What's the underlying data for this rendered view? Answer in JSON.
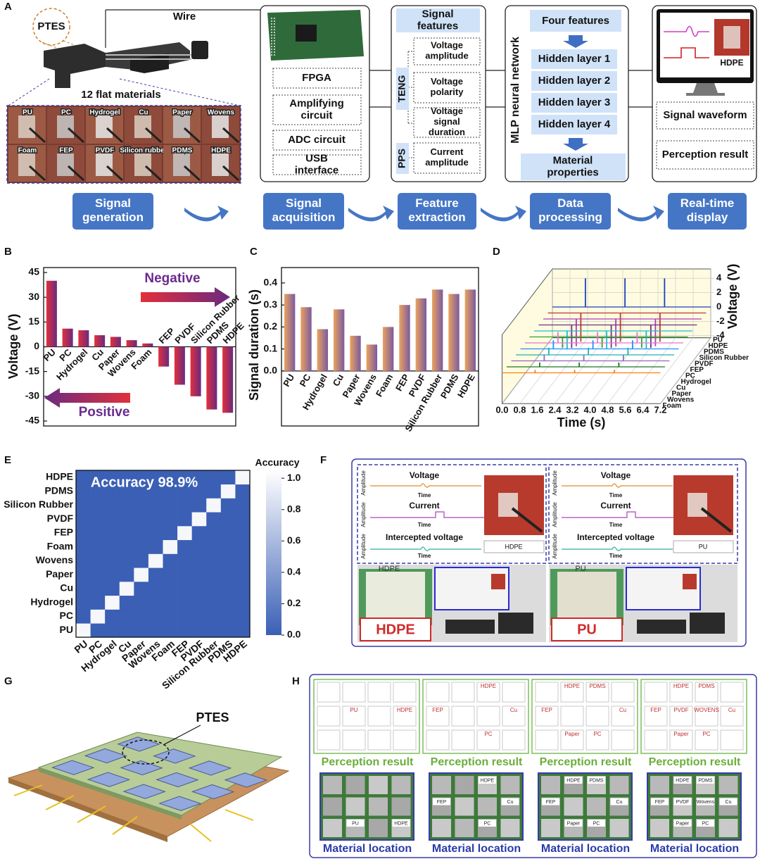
{
  "panel_labels": [
    "A",
    "B",
    "C",
    "D",
    "E",
    "F",
    "G",
    "H"
  ],
  "panel_a": {
    "ptes": "PTES",
    "wire": "Wire",
    "materials_caption": "12 flat materials",
    "materials": [
      "PU",
      "PC",
      "Hydrogel",
      "Cu",
      "Paper",
      "Wovens",
      "Foam",
      "FEP",
      "PVDF",
      "Silicon rubber",
      "PDMS",
      "HDPE"
    ],
    "hardware": [
      "FPGA",
      "Amplifying circuit",
      "ADC circuit",
      "USB interface"
    ],
    "features_title": "Signal features",
    "teng": "TENG",
    "pps": "PPS",
    "features": [
      "Voltage amplitude",
      "Voltage polarity",
      "Voltage signal duration",
      "Current amplitude"
    ],
    "network_title": "MLP neural network",
    "network_input": "Four features",
    "hidden_layers": [
      "Hidden layer 1",
      "Hidden layer 2",
      "Hidden layer 3",
      "Hidden layer 4"
    ],
    "network_output": "Material properties",
    "display_material": "HDPE",
    "display_items": [
      "Signal waveform",
      "Perception result"
    ],
    "flow": [
      "Signal generation",
      "Signal acquisition",
      "Feature extraction",
      "Data processing",
      "Real-time display"
    ]
  },
  "chart_data": [
    {
      "type": "bar",
      "ylabel": "Voltage (V)",
      "categories": [
        "PU",
        "PC",
        "Hydrogel",
        "Cu",
        "Paper",
        "Wovens",
        "Foam",
        "FEP",
        "PVDF",
        "Silicon Rubber",
        "PDMS",
        "HDPE"
      ],
      "values": [
        40,
        11,
        10,
        7,
        6,
        4,
        2,
        -12,
        -23,
        -30,
        -38,
        -40
      ],
      "gradient": [
        "#e2303a",
        "#6a2a80"
      ],
      "ylim": [
        -48,
        48
      ],
      "yticks": [
        -45,
        -30,
        -15,
        0,
        15,
        30,
        45
      ],
      "annotations": [
        "Negative",
        "Positive"
      ],
      "annotation_color": "#6a2a8e"
    },
    {
      "type": "bar",
      "ylabel": "Signal duration (s)",
      "categories": [
        "PU",
        "PC",
        "Hydrogel",
        "Cu",
        "Paper",
        "Wovens",
        "Foam",
        "FEP",
        "PVDF",
        "Silicon Rubber",
        "PDMS",
        "HDPE"
      ],
      "values": [
        0.35,
        0.29,
        0.19,
        0.28,
        0.16,
        0.12,
        0.2,
        0.3,
        0.33,
        0.37,
        0.35,
        0.37
      ],
      "gradient": [
        "#eaa25e",
        "#7b5aa0"
      ],
      "ylim": [
        -0.25,
        0.47
      ],
      "yticks": [
        {
          "value": 0,
          "label": "0.0"
        },
        0.1,
        0.2,
        0.3,
        0.4
      ]
    },
    {
      "type": "waterfall",
      "xlabel": "Time (s)",
      "ylabel": "Voltage (V)",
      "xlim": [
        0,
        7.2
      ],
      "xticks": [
        {
          "value": 0,
          "label": "0.0"
        },
        0.8,
        1.6,
        2.4,
        3.2,
        {
          "value": 4,
          "label": "4.0"
        },
        4.8,
        5.6,
        6.4,
        7.2
      ],
      "ylim": [
        -4.3,
        5.3
      ],
      "yticks": [
        4,
        2,
        0,
        -2,
        -4
      ],
      "wall_color": "#fffbe0",
      "series": [
        {
          "name": "PU",
          "color": "#1f3fbf",
          "x": [
            1.5,
            3.3,
            5.1
          ],
          "values": [
            4,
            4,
            4
          ]
        },
        {
          "name": "HDPE",
          "color": "#c0392b",
          "x": [
            1.5,
            3.3,
            5.1
          ],
          "values": [
            -4,
            -4,
            -4
          ]
        },
        {
          "name": "PDMS",
          "color": "#b03ab8",
          "x": [
            1.5,
            3.3,
            5.1
          ],
          "values": [
            -3.8,
            -3.8,
            -3.8
          ]
        },
        {
          "name": "Silicon Rubber",
          "color": "#6c3483",
          "x": [
            1.5,
            3.3,
            5.1
          ],
          "values": [
            -3.2,
            -3.2,
            -3.2
          ]
        },
        {
          "name": "PVDF",
          "color": "#17becf",
          "x": [
            1.5,
            3.3,
            5.1
          ],
          "values": [
            -2.5,
            -2.5,
            -2.5
          ]
        },
        {
          "name": "FEP",
          "color": "#2ca02c",
          "x": [
            1.5,
            3.3,
            5.1
          ],
          "values": [
            -1.5,
            -1.5,
            -1.5
          ]
        },
        {
          "name": "PC",
          "color": "#e377c2",
          "x": [
            1.5,
            3.3,
            5.1
          ],
          "values": [
            1.5,
            1.5,
            1.5
          ]
        },
        {
          "name": "Hydrogel",
          "color": "#1e90ff",
          "x": [
            1.5,
            3.3,
            5.1
          ],
          "values": [
            1.2,
            1.2,
            1.2
          ]
        },
        {
          "name": "Cu",
          "color": "#20b2aa",
          "x": [
            1.5,
            3.3,
            5.1
          ],
          "values": [
            1,
            1,
            1
          ]
        },
        {
          "name": "Paper",
          "color": "#9467bd",
          "x": [
            1.5,
            3.3,
            5.1
          ],
          "values": [
            0.8,
            0.8,
            0.8
          ]
        },
        {
          "name": "Wovens",
          "color": "#1b7a1b",
          "x": [
            1.5,
            3.3,
            5.1
          ],
          "values": [
            0.6,
            0.6,
            0.6
          ]
        },
        {
          "name": "Foam",
          "color": "#ff7f0e",
          "x": [
            1.5,
            3.3,
            5.1
          ],
          "values": [
            0.4,
            0.4,
            0.4
          ]
        }
      ]
    },
    {
      "type": "heatmap",
      "title": "Accuracy 98.9%",
      "colorbar_label": "Accuracy",
      "categories": [
        "PU",
        "PC",
        "Hydrogel",
        "Cu",
        "Paper",
        "Wovens",
        "Foam",
        "FEP",
        "PVDF",
        "Silicon Rubber",
        "PDMS",
        "HDPE"
      ],
      "values": [
        [
          1,
          0,
          0,
          0,
          0,
          0,
          0,
          0,
          0,
          0,
          0,
          0
        ],
        [
          0,
          1,
          0,
          0,
          0,
          0,
          0,
          0,
          0,
          0,
          0,
          0
        ],
        [
          0,
          0,
          1,
          0,
          0,
          0,
          0,
          0,
          0,
          0,
          0,
          0
        ],
        [
          0,
          0,
          0,
          1,
          0,
          0,
          0,
          0,
          0,
          0,
          0,
          0
        ],
        [
          0,
          0,
          0,
          0,
          1,
          0,
          0,
          0,
          0,
          0,
          0,
          0
        ],
        [
          0,
          0,
          0,
          0,
          0,
          1,
          0,
          0,
          0,
          0,
          0,
          0
        ],
        [
          0,
          0,
          0,
          0,
          0,
          0,
          1,
          0,
          0,
          0,
          0,
          0
        ],
        [
          0,
          0,
          0,
          0,
          0,
          0,
          0,
          1,
          0,
          0,
          0,
          0
        ],
        [
          0,
          0,
          0,
          0,
          0,
          0,
          0,
          0,
          1,
          0,
          0,
          0
        ],
        [
          0,
          0,
          0,
          0,
          0,
          0,
          0,
          0,
          0,
          1,
          0,
          0
        ],
        [
          0,
          0,
          0,
          0,
          0,
          0,
          0,
          0,
          0,
          0,
          1,
          0
        ],
        [
          0,
          0,
          0,
          0,
          0,
          0,
          0,
          0,
          0,
          0,
          0,
          1
        ]
      ],
      "colors": [
        "#3a5fb5",
        "#ffffff"
      ],
      "clim": [
        0,
        1.05
      ],
      "cticks": [
        {
          "value": 0,
          "label": "0.0"
        },
        0.2,
        0.4,
        0.6,
        0.8,
        {
          "value": 1,
          "label": "1.0"
        }
      ]
    }
  ],
  "panel_f": {
    "blocks": [
      {
        "signals": [
          "Voltage",
          "Current",
          "Intercepted voltage"
        ],
        "time": "Time",
        "amplitude": "Amplitude",
        "photo_label": "HDPE",
        "sample_label": "HDPE",
        "tag": "HDPE"
      },
      {
        "signals": [
          "Voltage",
          "Current",
          "Intercepted voltage"
        ],
        "time": "Time",
        "amplitude": "Amplitude",
        "photo_label": "PU",
        "sample_label": "PU",
        "tag": "PU"
      }
    ]
  },
  "panel_g": {
    "label": "PTES"
  },
  "panel_h": {
    "columns": [
      {
        "result_cells": [
          [
            null,
            null,
            null,
            null
          ],
          [
            null,
            "PU",
            null,
            "HDPE"
          ],
          [
            null,
            null,
            null,
            null
          ]
        ],
        "result_caption": "Perception result",
        "photo_cells": [
          [
            null,
            null,
            null,
            null
          ],
          [
            null,
            null,
            null,
            null
          ],
          [
            null,
            "PU",
            null,
            "HDPE"
          ]
        ],
        "photo_caption": "Material location"
      },
      {
        "result_cells": [
          [
            null,
            null,
            "HDPE",
            null
          ],
          [
            "FEP",
            null,
            null,
            "Cu"
          ],
          [
            null,
            null,
            "PC",
            null
          ]
        ],
        "result_caption": "Perception result",
        "photo_cells": [
          [
            null,
            null,
            "HDPE",
            null
          ],
          [
            "FEP",
            null,
            null,
            "Cu"
          ],
          [
            null,
            null,
            "PC",
            null
          ]
        ],
        "photo_caption": "Material location"
      },
      {
        "result_cells": [
          [
            null,
            "HDPE",
            "PDMS",
            null
          ],
          [
            "FEP",
            null,
            null,
            "Cu"
          ],
          [
            null,
            "Paper",
            "PC",
            null
          ]
        ],
        "result_caption": "Perception result",
        "photo_cells": [
          [
            null,
            "HDPE",
            "PDMS",
            null
          ],
          [
            "FEP",
            null,
            null,
            "Cu"
          ],
          [
            null,
            "Paper",
            "PC",
            null
          ]
        ],
        "photo_caption": "Material location"
      },
      {
        "result_cells": [
          [
            null,
            "HDPE",
            "PDMS",
            null
          ],
          [
            "FEP",
            "PVDF",
            "WOVENS",
            "Cu"
          ],
          [
            null,
            "Paper",
            "PC",
            null
          ]
        ],
        "result_caption": "Perception result",
        "photo_cells": [
          [
            null,
            "HDPE",
            "PDMS",
            null
          ],
          [
            "FEP",
            "PVDF",
            "Wovens",
            "Cu"
          ],
          [
            null,
            "Paper",
            "PC",
            null
          ]
        ],
        "photo_caption": "Material location"
      }
    ]
  }
}
